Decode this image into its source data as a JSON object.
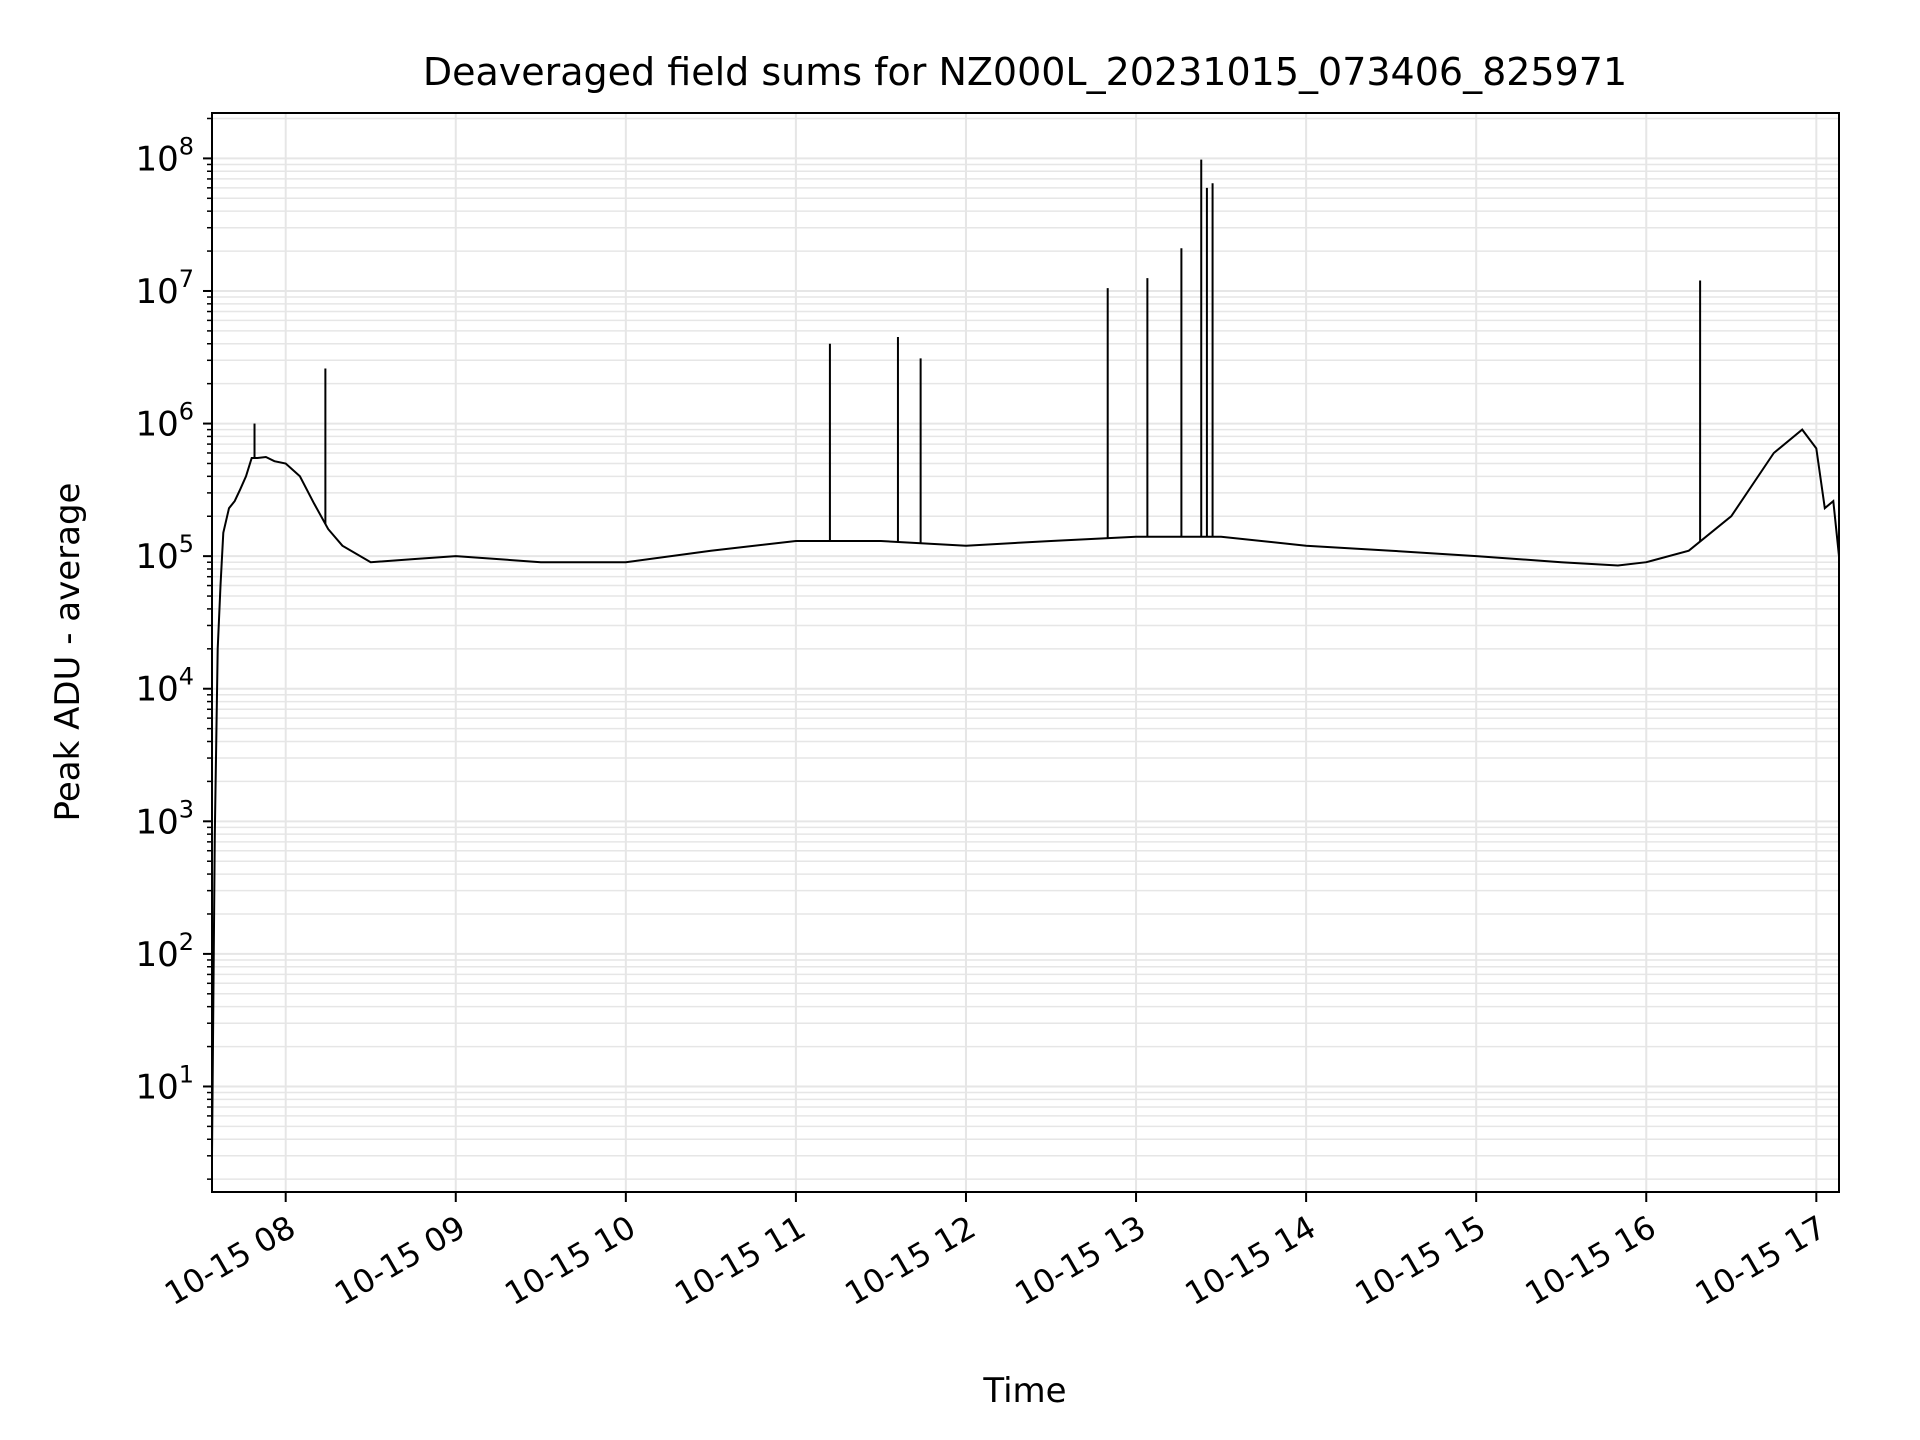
{
  "chart_data": {
    "type": "line",
    "title": "Deaveraged field sums for NZ000L_20231015_073406_825971",
    "xlabel": "Time",
    "ylabel": "Peak ADU - average",
    "yscale": "log",
    "ylim": [
      1.6,
      220000000
    ],
    "xlim": [
      "2023-10-15 07:34",
      "2023-10-15 17:08"
    ],
    "grid": true,
    "grid_minor": true,
    "line_color": "#000000",
    "grid_color": "#e6e6e6",
    "x_ticks": [
      {
        "t": "2023-10-15 08:00",
        "label": "10-15 08"
      },
      {
        "t": "2023-10-15 09:00",
        "label": "10-15 09"
      },
      {
        "t": "2023-10-15 10:00",
        "label": "10-15 10"
      },
      {
        "t": "2023-10-15 11:00",
        "label": "10-15 11"
      },
      {
        "t": "2023-10-15 12:00",
        "label": "10-15 12"
      },
      {
        "t": "2023-10-15 13:00",
        "label": "10-15 13"
      },
      {
        "t": "2023-10-15 14:00",
        "label": "10-15 14"
      },
      {
        "t": "2023-10-15 15:00",
        "label": "10-15 15"
      },
      {
        "t": "2023-10-15 16:00",
        "label": "10-15 16"
      },
      {
        "t": "2023-10-15 17:00",
        "label": "10-15 17"
      }
    ],
    "y_ticks": [
      {
        "value": 10,
        "base": "10",
        "exp": "1"
      },
      {
        "value": 100,
        "base": "10",
        "exp": "2"
      },
      {
        "value": 1000,
        "base": "10",
        "exp": "3"
      },
      {
        "value": 10000,
        "base": "10",
        "exp": "4"
      },
      {
        "value": 100000,
        "base": "10",
        "exp": "5"
      },
      {
        "value": 1000000,
        "base": "10",
        "exp": "6"
      },
      {
        "value": 10000000,
        "base": "10",
        "exp": "7"
      },
      {
        "value": 100000000,
        "base": "10",
        "exp": "8"
      }
    ],
    "series": [
      {
        "x": [
          "2023-10-15 07:34",
          "2023-10-15 07:35",
          "2023-10-15 07:36",
          "2023-10-15 07:37",
          "2023-10-15 07:38",
          "2023-10-15 07:40",
          "2023-10-15 07:42",
          "2023-10-15 07:44",
          "2023-10-15 07:46",
          "2023-10-15 07:48",
          "2023-10-15 07:50",
          "2023-10-15 07:53",
          "2023-10-15 07:56",
          "2023-10-15 08:00",
          "2023-10-15 08:05",
          "2023-10-15 08:10",
          "2023-10-15 08:15",
          "2023-10-15 08:20",
          "2023-10-15 08:30",
          "2023-10-15 08:45",
          "2023-10-15 09:00",
          "2023-10-15 09:30",
          "2023-10-15 10:00",
          "2023-10-15 10:30",
          "2023-10-15 11:00",
          "2023-10-15 11:30",
          "2023-10-15 12:00",
          "2023-10-15 12:30",
          "2023-10-15 13:00",
          "2023-10-15 13:30",
          "2023-10-15 14:00",
          "2023-10-15 14:30",
          "2023-10-15 15:00",
          "2023-10-15 15:30",
          "2023-10-15 15:50",
          "2023-10-15 16:00",
          "2023-10-15 16:15",
          "2023-10-15 16:30",
          "2023-10-15 16:45",
          "2023-10-15 16:55",
          "2023-10-15 17:00",
          "2023-10-15 17:03",
          "2023-10-15 17:06",
          "2023-10-15 17:08"
        ],
        "y": [
          3,
          800,
          20000,
          60000,
          150000,
          230000,
          260000,
          320000,
          400000,
          550000,
          550000,
          560000,
          520000,
          500000,
          400000,
          250000,
          160000,
          120000,
          90000,
          95000,
          100000,
          90000,
          90000,
          110000,
          130000,
          130000,
          120000,
          130000,
          140000,
          140000,
          120000,
          110000,
          100000,
          90000,
          85000,
          90000,
          110000,
          200000,
          600000,
          900000,
          650000,
          230000,
          260000,
          100000
        ]
      }
    ],
    "spikes": [
      {
        "t": "2023-10-15 07:49",
        "value": 1000000
      },
      {
        "t": "2023-10-15 08:14",
        "value": 2600000
      },
      {
        "t": "2023-10-15 11:12",
        "value": 4000000
      },
      {
        "t": "2023-10-15 11:36",
        "value": 4500000
      },
      {
        "t": "2023-10-15 11:44",
        "value": 3100000
      },
      {
        "t": "2023-10-15 12:50",
        "value": 10500000
      },
      {
        "t": "2023-10-15 13:04",
        "value": 12500000
      },
      {
        "t": "2023-10-15 13:16",
        "value": 21000000
      },
      {
        "t": "2023-10-15 13:23",
        "value": 98000000
      },
      {
        "t": "2023-10-15 13:25",
        "value": 60000000
      },
      {
        "t": "2023-10-15 13:27",
        "value": 65000000
      },
      {
        "t": "2023-10-15 16:19",
        "value": 12000000
      }
    ]
  }
}
